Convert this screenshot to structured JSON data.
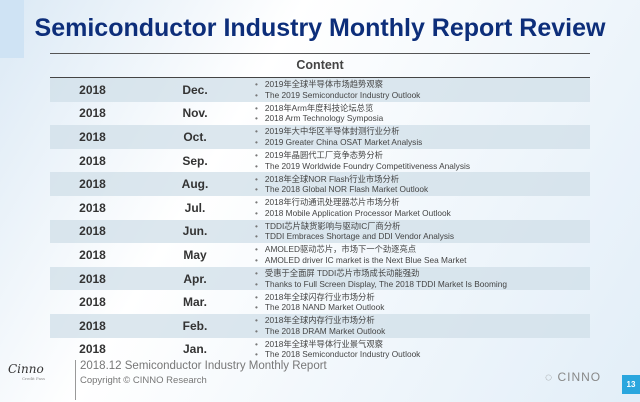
{
  "title": "Semiconductor Industry Monthly Report Review",
  "content_header": "Content",
  "rows": [
    {
      "year": "2018",
      "month": "Dec.",
      "cn": "2019年全球半导体市场趋势观察",
      "en": "The 2019 Semiconductor Industry Outlook"
    },
    {
      "year": "2018",
      "month": "Nov.",
      "cn": "2018年Arm年度科技论坛总览",
      "en": "2018 Arm Technology Symposia"
    },
    {
      "year": "2018",
      "month": "Oct.",
      "cn": "2019年大中华区半导体封测行业分析",
      "en": "2019 Greater China OSAT Market Analysis"
    },
    {
      "year": "2018",
      "month": "Sep.",
      "cn": "2019年晶圆代工厂竞争态势分析",
      "en": "The 2019 Worldwide Foundry Competitiveness Analysis"
    },
    {
      "year": "2018",
      "month": "Aug.",
      "cn": "2018年全球NOR Flash行业市场分析",
      "en": "The 2018 Global NOR Flash Market Outlook"
    },
    {
      "year": "2018",
      "month": "Jul.",
      "cn": "2018年行动通讯处理器芯片市场分析",
      "en": "2018 Mobile Application Processor Market Outlook"
    },
    {
      "year": "2018",
      "month": "Jun.",
      "cn": "TDDI芯片缺货影响与驱动IC厂商分析",
      "en": "TDDI Embraces Shortage and DDI Vendor Analysis"
    },
    {
      "year": "2018",
      "month": "May",
      "cn": "AMOLED驱动芯片，市场下一个劲逐亮点",
      "en": "AMOLED driver IC market is the Next Blue Sea Market"
    },
    {
      "year": "2018",
      "month": "Apr.",
      "cn": "受惠于全面屏 TDDI芯片市场成长动能强劲",
      "en": "Thanks to Full Screen Display, The 2018 TDDI Market Is Booming"
    },
    {
      "year": "2018",
      "month": "Mar.",
      "cn": "2018年全球闪存行业市场分析",
      "en": "The 2018 NAND Market Outlook"
    },
    {
      "year": "2018",
      "month": "Feb.",
      "cn": "2018年全球内存行业市场分析",
      "en": "The 2018 DRAM Market Outlook"
    },
    {
      "year": "2018",
      "month": "Jan.",
      "cn": "2018年全球半导体行业景气观察",
      "en": "The 2018 Semiconductor Industry Outlook"
    }
  ],
  "footer": {
    "logo": "Cinno",
    "logo_sub": "Credit Pass",
    "report": "2018.12 Semiconductor Industry Monthly Report",
    "copyright": "Copyright © CINNO Research",
    "brand": "CINNO",
    "page": "13"
  }
}
